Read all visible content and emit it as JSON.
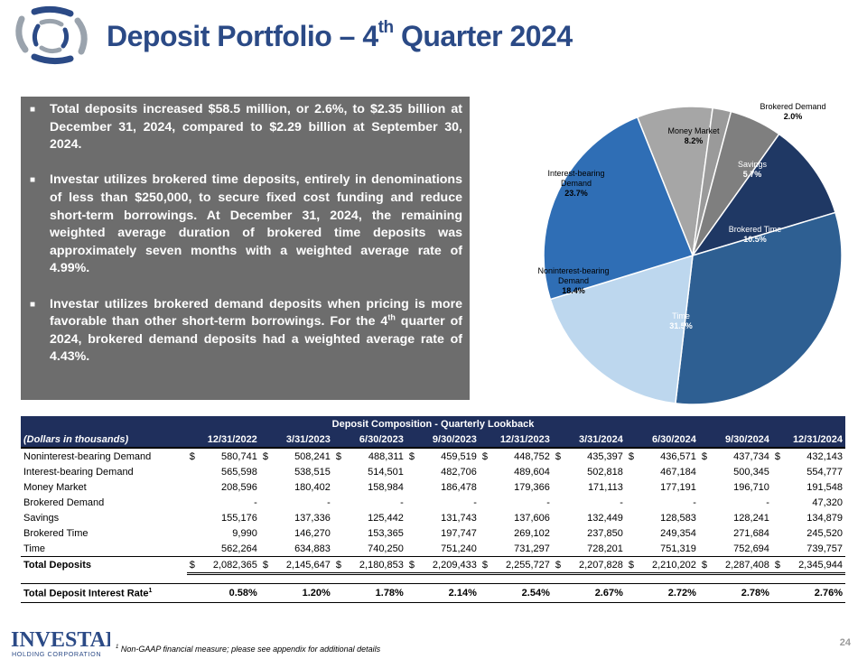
{
  "title": {
    "main": "Deposit Portfolio – 4",
    "sup": "th",
    "rest": " Quarter 2024"
  },
  "bullets": [
    {
      "text": "Total deposits increased $58.5 million, or 2.6%, to $2.35 billion at December 31, 2024, compared to $2.29 billion at September 30, 2024."
    },
    {
      "text": "Investar utilizes brokered time deposits, entirely in denominations of less than $250,000, to secure fixed cost funding and reduce short-term borrowings. At December 31, 2024, the remaining weighted average duration of brokered time deposits was approximately seven months with a weighted average rate of 4.99%."
    },
    {
      "pre": "Investar utilizes brokered demand deposits when pricing is more favorable than other short-term borrowings. For the 4",
      "sup": "th",
      "post": " quarter of 2024, brokered demand deposits had a weighted average rate of 4.43%."
    }
  ],
  "chart_data": {
    "type": "pie",
    "slices": [
      {
        "label": "Money Market",
        "value": 8.2,
        "display": "8.2%",
        "color": "#a6a6a6"
      },
      {
        "label": "Brokered Demand",
        "value": 2.0,
        "display": "2.0%",
        "color": "#9a9a9a"
      },
      {
        "label": "Savings",
        "value": 5.7,
        "display": "5.7%",
        "color": "#7f7f7f"
      },
      {
        "label": "Brokered Time",
        "value": 10.5,
        "display": "10.5%",
        "color": "#1f3864"
      },
      {
        "label": "Time",
        "value": 31.5,
        "display": "31.5%",
        "color": "#2e5f92"
      },
      {
        "label": "Noninterest-bearing Demand",
        "value": 18.4,
        "display": "18.4%",
        "color": "#bdd7ee"
      },
      {
        "label": "Interest-bearing Demand",
        "value": 23.7,
        "display": "23.7%",
        "color": "#2f6eb5"
      }
    ]
  },
  "table": {
    "caption": "Deposit Composition - Quarterly Lookback",
    "unit_label": "(Dollars in thousands)",
    "columns": [
      "12/31/2022",
      "3/31/2023",
      "6/30/2023",
      "9/30/2023",
      "12/31/2023",
      "3/31/2024",
      "6/30/2024",
      "9/30/2024",
      "12/31/2024"
    ],
    "rows": [
      {
        "label": "Noninterest-bearing Demand",
        "dollar": true,
        "values": [
          "580,741",
          "508,241",
          "488,311",
          "459,519",
          "448,752",
          "435,397",
          "436,571",
          "437,734",
          "432,143"
        ]
      },
      {
        "label": "Interest-bearing Demand",
        "values": [
          "565,598",
          "538,515",
          "514,501",
          "482,706",
          "489,604",
          "502,818",
          "467,184",
          "500,345",
          "554,777"
        ]
      },
      {
        "label": "Money Market",
        "values": [
          "208,596",
          "180,402",
          "158,984",
          "186,478",
          "179,366",
          "171,113",
          "177,191",
          "196,710",
          "191,548"
        ]
      },
      {
        "label": "Brokered Demand",
        "values": [
          "-",
          "-",
          "-",
          "-",
          "-",
          "-",
          "-",
          "-",
          "47,320"
        ]
      },
      {
        "label": "Savings",
        "values": [
          "155,176",
          "137,336",
          "125,442",
          "131,743",
          "137,606",
          "132,449",
          "128,583",
          "128,241",
          "134,879"
        ]
      },
      {
        "label": "Brokered Time",
        "values": [
          "9,990",
          "146,270",
          "153,365",
          "197,747",
          "269,102",
          "237,850",
          "249,354",
          "271,684",
          "245,520"
        ]
      },
      {
        "label": "Time",
        "values": [
          "562,264",
          "634,883",
          "740,250",
          "751,240",
          "731,297",
          "728,201",
          "751,319",
          "752,694",
          "739,757"
        ]
      }
    ],
    "total": {
      "label": "Total Deposits",
      "dollar": true,
      "values": [
        "2,082,365",
        "2,145,647",
        "2,180,853",
        "2,209,433",
        "2,255,727",
        "2,207,828",
        "2,210,202",
        "2,287,408",
        "2,345,944"
      ]
    },
    "rate": {
      "label": "Total Deposit Interest Rate",
      "sup": "1",
      "values": [
        "0.58%",
        "1.20%",
        "1.78%",
        "2.14%",
        "2.54%",
        "2.67%",
        "2.72%",
        "2.78%",
        "2.76%"
      ]
    }
  },
  "footer": {
    "logo_main": "INVESTAR",
    "logo_sub": "HOLDING CORPORATION",
    "footnote_sup": "1",
    "footnote": " Non-GAAP financial measure; please see appendix for additional details",
    "page": "24"
  },
  "colors": {
    "title": "#2b4a86",
    "table_header": "#1f2f5c",
    "textbox": "#6d6d6d"
  }
}
